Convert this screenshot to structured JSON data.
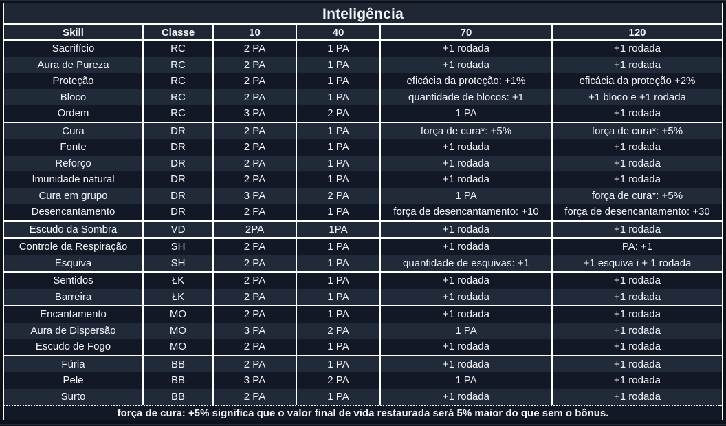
{
  "title": "Inteligência",
  "columns": [
    "Skill",
    "Classe",
    "10",
    "40",
    "70",
    "120"
  ],
  "column_names": [
    "skill-cell",
    "classe-cell",
    "value-10-cell",
    "value-40-cell",
    "value-70-cell",
    "value-120-cell"
  ],
  "groups": [
    {
      "classe": "RC",
      "rows": [
        [
          "Sacrifício",
          "RC",
          "2 PA",
          "1 PA",
          "+1 rodada",
          "+1 rodada"
        ],
        [
          "Aura de Pureza",
          "RC",
          "2 PA",
          "1 PA",
          "+1 rodada",
          "+1 rodada"
        ],
        [
          "Proteção",
          "RC",
          "2 PA",
          "1 PA",
          "eficácia da proteção: +1%",
          "eficácia da proteção +2%"
        ],
        [
          "Bloco",
          "RC",
          "2 PA",
          "1 PA",
          "quantidade de blocos: +1",
          "+1 bloco e +1 rodada"
        ],
        [
          "Ordem",
          "RC",
          "3 PA",
          "2 PA",
          "1 PA",
          "+1 rodada"
        ]
      ]
    },
    {
      "classe": "DR",
      "rows": [
        [
          "Cura",
          "DR",
          "2 PA",
          "1 PA",
          "força de cura*: +5%",
          "força de cura*: +5%"
        ],
        [
          "Fonte",
          "DR",
          "2 PA",
          "1 PA",
          "+1 rodada",
          "+1 rodada"
        ],
        [
          "Reforço",
          "DR",
          "2 PA",
          "1 PA",
          "+1 rodada",
          "+1 rodada"
        ],
        [
          "Imunidade natural",
          "DR",
          "2 PA",
          "1 PA",
          "+1 rodada",
          "+1 rodada"
        ],
        [
          "Cura em grupo",
          "DR",
          "3 PA",
          "2 PA",
          "1 PA",
          "força de cura*: +5%"
        ],
        [
          "Desencantamento",
          "DR",
          "2 PA",
          "1 PA",
          "força de desencantamento: +10",
          "força de desencantamento: +30"
        ]
      ]
    },
    {
      "classe": "VD",
      "rows": [
        [
          "Escudo da Sombra",
          "VD",
          "2PA",
          "1PA",
          "+1 rodada",
          "+1 rodada"
        ]
      ]
    },
    {
      "classe": "SH",
      "rows": [
        [
          "Controle da Respiração",
          "SH",
          "2 PA",
          "1 PA",
          "+1 rodada",
          "PA: +1"
        ],
        [
          "Esquiva",
          "SH",
          "2 PA",
          "1 PA",
          "quantidade de esquivas: +1",
          "+1 esquiva i + 1 rodada"
        ]
      ]
    },
    {
      "classe": "ŁK",
      "rows": [
        [
          "Sentidos",
          "ŁK",
          "2 PA",
          "1 PA",
          "+1 rodada",
          "+1 rodada"
        ],
        [
          "Barreira",
          "ŁK",
          "2 PA",
          "1 PA",
          "+1 rodada",
          "+1 rodada"
        ]
      ]
    },
    {
      "classe": "MO",
      "rows": [
        [
          "Encantamento",
          "MO",
          "2 PA",
          "1 PA",
          "+1 rodada",
          "+1 rodada"
        ],
        [
          "Aura de Dispersão",
          "MO",
          "3 PA",
          "2 PA",
          "1 PA",
          "+1 rodada"
        ],
        [
          "Escudo de Fogo",
          "MO",
          "2 PA",
          "1 PA",
          "+1 rodada",
          "+1 rodada"
        ]
      ]
    },
    {
      "classe": "BB",
      "rows": [
        [
          "Fúria",
          "BB",
          "2 PA",
          "1 PA",
          "+1 rodada",
          "+1 rodada"
        ],
        [
          "Pele",
          "BB",
          "3 PA",
          "2 PA",
          "1 PA",
          "+1 rodada"
        ],
        [
          "Surto",
          "BB",
          "2 PA",
          "1 PA",
          "+1 rodada",
          "+1 rodada"
        ]
      ]
    }
  ],
  "footnote": "força de cura: +5% significa que o valor final de vida restaurada será 5% maior do que sem o bônus.",
  "colors": {
    "page_bg": "#0d1118",
    "header_bg": "#1f2735",
    "row_dark": "#121826",
    "row_light": "#212a39",
    "border": "#ffffff",
    "text": "#f2f4f8",
    "accent_line": "#232c3c"
  }
}
